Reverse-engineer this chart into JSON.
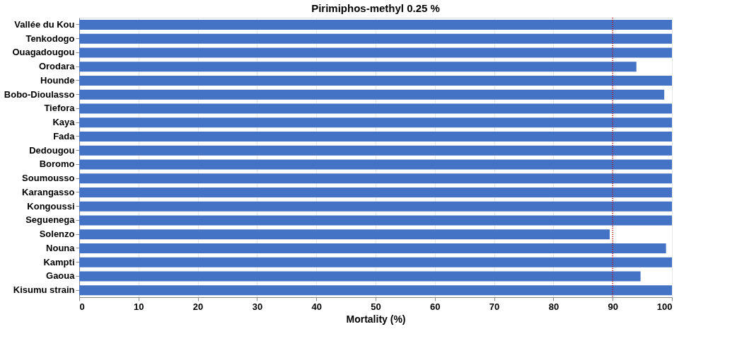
{
  "chart_data": {
    "type": "bar",
    "orientation": "horizontal",
    "title": "Pirimiphos-methyl  0.25 %",
    "xlabel": "Mortality (%)",
    "categories": [
      "Vallée du Kou",
      "Tenkodogo",
      "Ouagadougou",
      "Orodara",
      "Hounde",
      "Bobo-Dioulasso",
      "Tiefora",
      "Kaya",
      "Fada",
      "Dedougou",
      "Boromo",
      "Soumousso",
      "Karangasso",
      "Kongoussi",
      "Seguenega",
      "Solenzo",
      "Nouna",
      "Kampti",
      "Gaoua",
      "Kisumu strain"
    ],
    "values": [
      100,
      100,
      100,
      94,
      100,
      98.7,
      100,
      100,
      100,
      100,
      100,
      100,
      100,
      100,
      100,
      89.5,
      99,
      100,
      94.7,
      100
    ],
    "color": "#4472c4",
    "xlim": [
      0,
      100
    ],
    "xticks": [
      0,
      10,
      20,
      30,
      40,
      50,
      60,
      70,
      80,
      90,
      100
    ],
    "grid": "x",
    "ref_lines": [
      {
        "axis": "x",
        "value": 90,
        "color": "#c00000",
        "line_style": "dotted"
      }
    ]
  }
}
